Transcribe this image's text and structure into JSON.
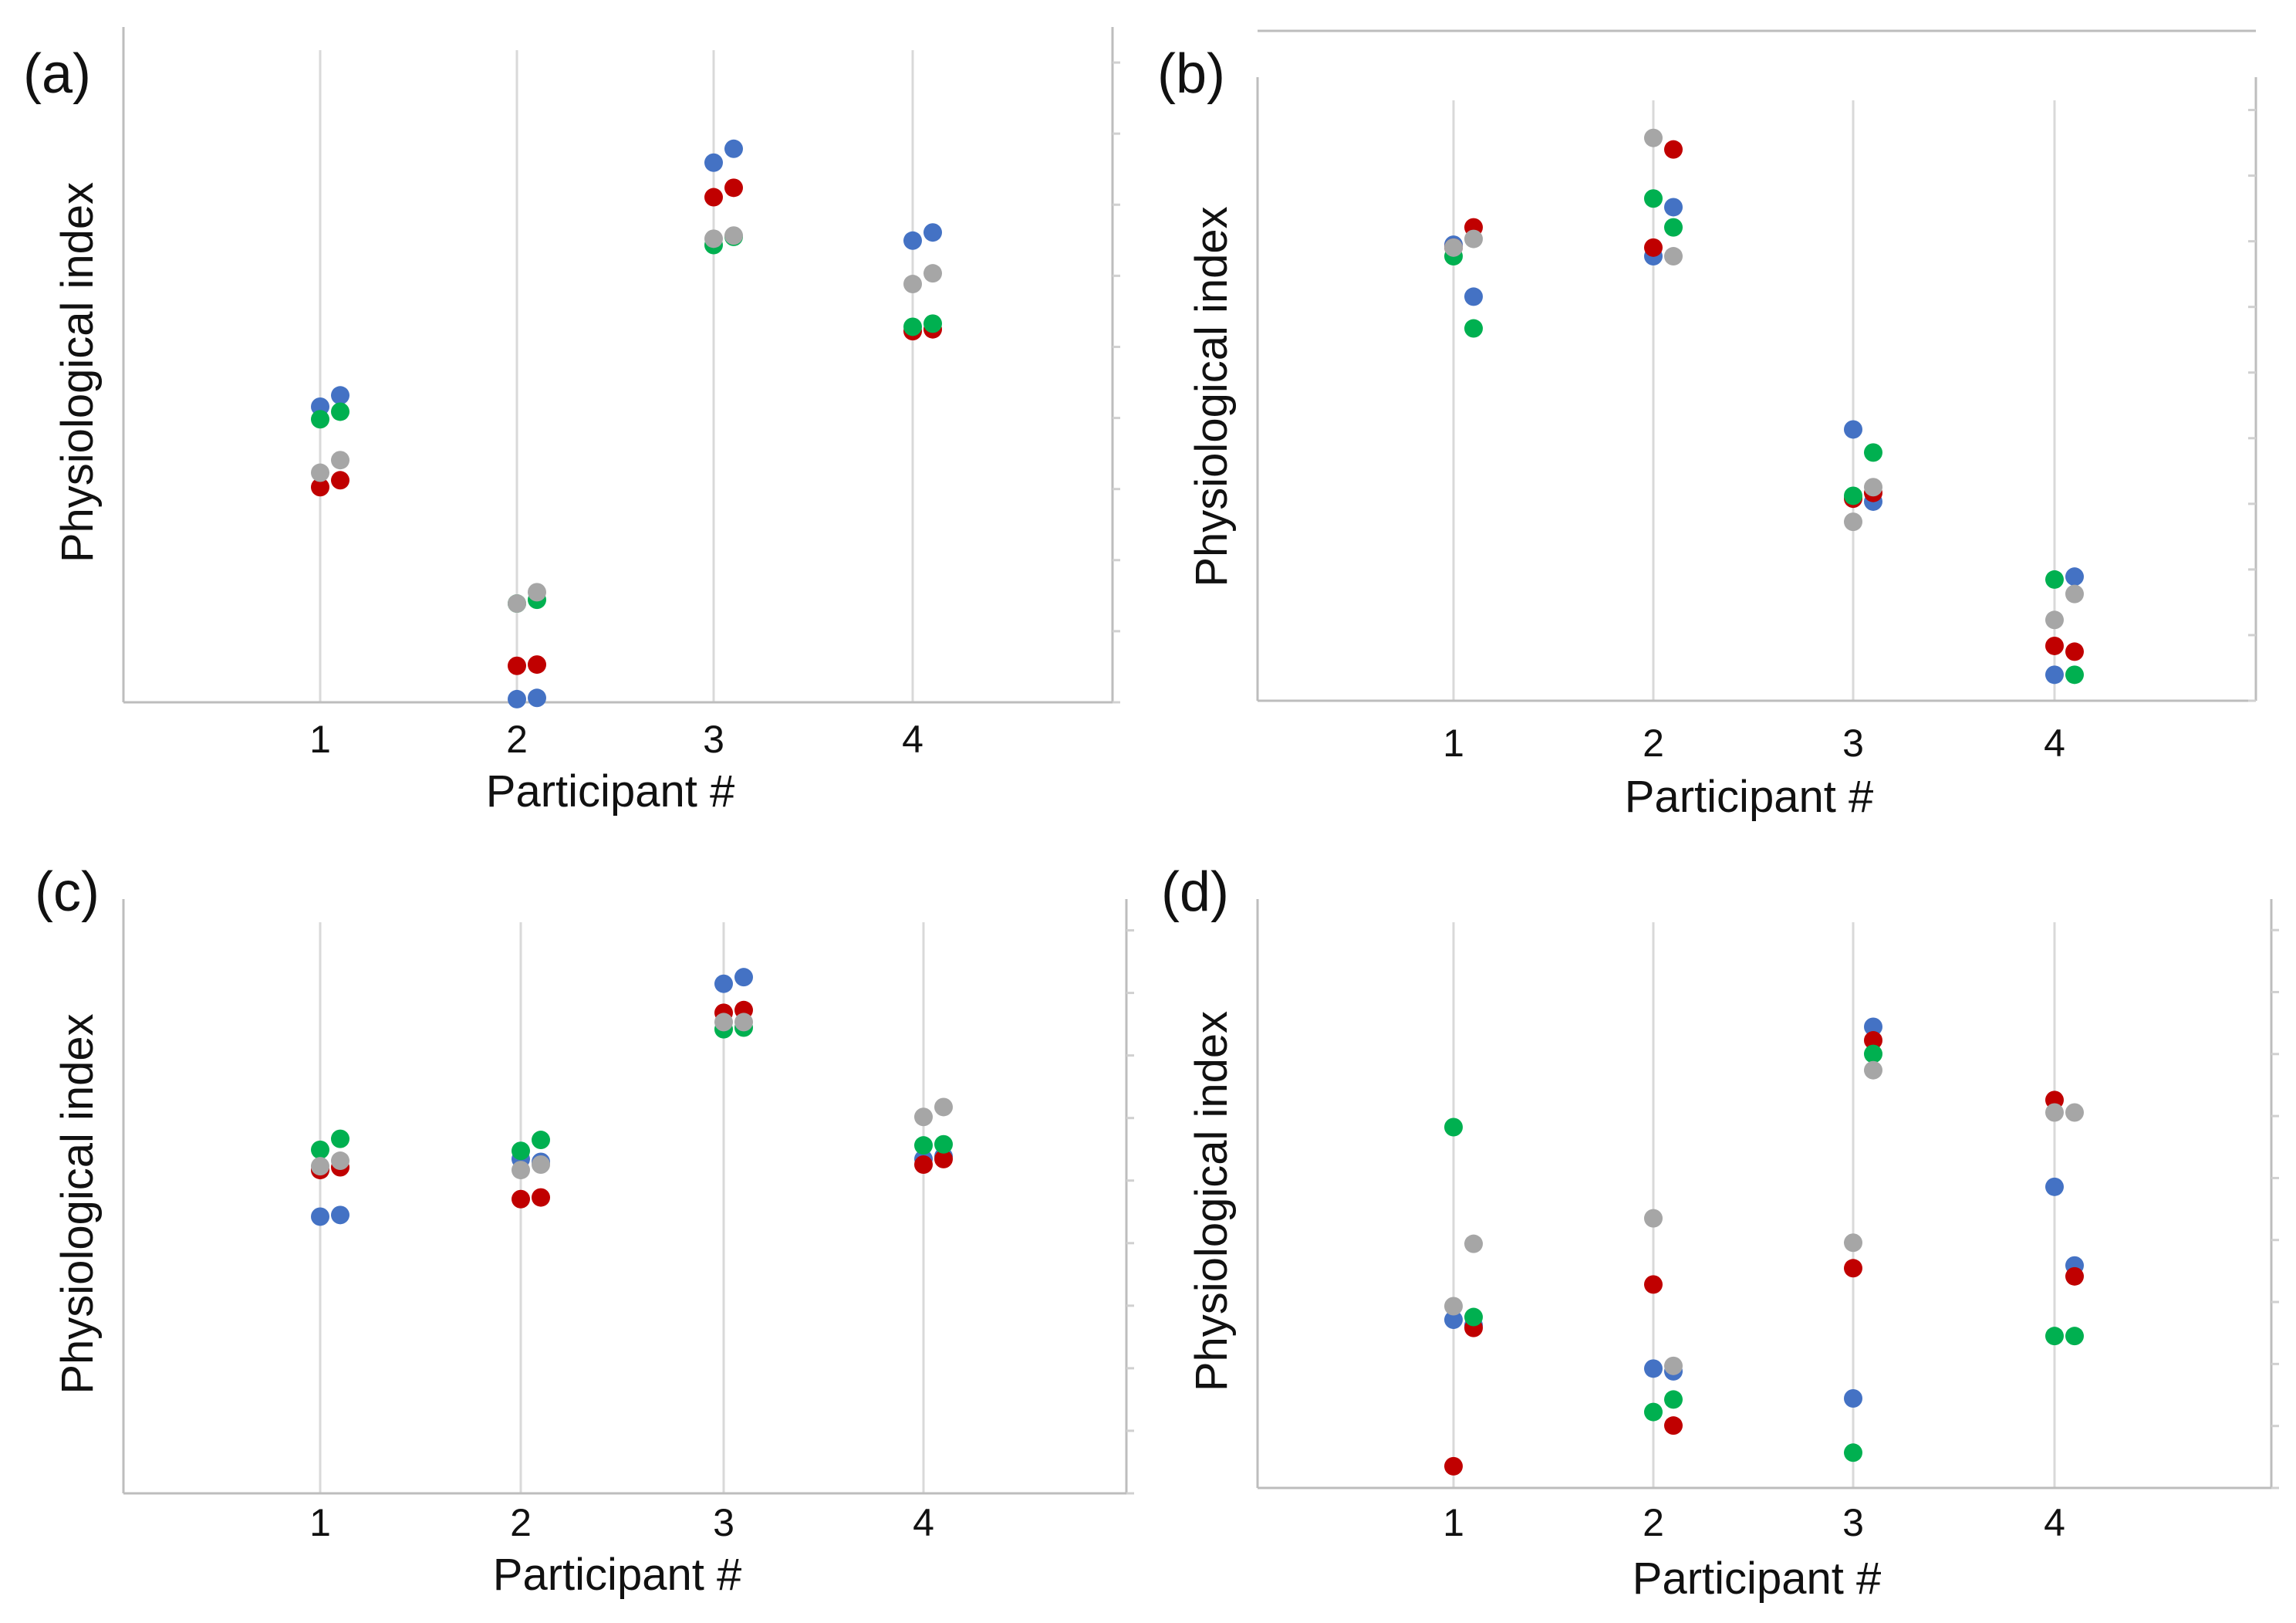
{
  "colors": {
    "blue": "#4472c4",
    "red": "#c00000",
    "green": "#00b050",
    "gray": "#a6a6a6"
  },
  "chart_data": [
    {
      "type": "scatter",
      "panel_label": "(a)",
      "xlabel": "Participant #",
      "ylabel": "Physiological index",
      "categories": [
        "1",
        "2",
        "3",
        "4"
      ],
      "xlim": [
        0,
        5
      ],
      "ylim": [
        0,
        1
      ],
      "grid": "vertical",
      "series": [
        {
          "color": "blue",
          "points": [
            [
              1,
              0.47
            ],
            [
              1.1,
              0.488
            ],
            [
              2,
              0.005
            ],
            [
              2.1,
              0.007
            ],
            [
              3,
              0.858
            ],
            [
              3.1,
              0.88
            ],
            [
              4,
              0.734
            ],
            [
              4.1,
              0.747
            ]
          ]
        },
        {
          "color": "red",
          "points": [
            [
              1,
              0.342
            ],
            [
              1.1,
              0.353
            ],
            [
              2,
              0.058
            ],
            [
              2.1,
              0.06
            ],
            [
              3,
              0.803
            ],
            [
              3.1,
              0.818
            ],
            [
              4,
              0.59
            ],
            [
              4.1,
              0.593
            ]
          ]
        },
        {
          "color": "green",
          "points": [
            [
              1,
              0.45
            ],
            [
              1.1,
              0.462
            ],
            [
              2,
              0.157
            ],
            [
              2.1,
              0.163
            ],
            [
              3,
              0.727
            ],
            [
              3.1,
              0.74
            ],
            [
              4,
              0.597
            ],
            [
              4.1,
              0.602
            ]
          ]
        },
        {
          "color": "gray",
          "points": [
            [
              1,
              0.365
            ],
            [
              1.1,
              0.385
            ],
            [
              2,
              0.157
            ],
            [
              2.1,
              0.175
            ],
            [
              3,
              0.737
            ],
            [
              3.1,
              0.742
            ],
            [
              4,
              0.665
            ],
            [
              4.1,
              0.682
            ]
          ]
        }
      ]
    },
    {
      "type": "scatter",
      "panel_label": "(b)",
      "xlabel": "Participant #",
      "ylabel": "Physiological index",
      "categories": [
        "1",
        "2",
        "3",
        "4"
      ],
      "xlim": [
        0,
        5
      ],
      "ylim": [
        0,
        1
      ],
      "grid": "vertical",
      "series": [
        {
          "color": "blue",
          "points": [
            [
              1,
              0.79
            ],
            [
              1.1,
              0.7
            ],
            [
              2,
              0.77
            ],
            [
              2.1,
              0.855
            ],
            [
              3,
              0.47
            ],
            [
              3.1,
              0.345
            ],
            [
              4,
              0.045
            ],
            [
              4.1,
              0.215
            ]
          ]
        },
        {
          "color": "red",
          "points": [
            [
              1,
              0.785
            ],
            [
              1.1,
              0.82
            ],
            [
              2,
              0.785
            ],
            [
              2.1,
              0.955
            ],
            [
              3,
              0.35
            ],
            [
              3.1,
              0.36
            ],
            [
              4,
              0.095
            ],
            [
              4.1,
              0.085
            ]
          ]
        },
        {
          "color": "green",
          "points": [
            [
              1,
              0.77
            ],
            [
              1.1,
              0.645
            ],
            [
              2,
              0.87
            ],
            [
              2.1,
              0.82
            ],
            [
              3,
              0.355
            ],
            [
              3.1,
              0.43
            ],
            [
              4,
              0.21
            ],
            [
              4.1,
              0.045
            ]
          ]
        },
        {
          "color": "gray",
          "points": [
            [
              1,
              0.785
            ],
            [
              1.1,
              0.8
            ],
            [
              2,
              0.975
            ],
            [
              2.1,
              0.77
            ],
            [
              3,
              0.31
            ],
            [
              3.1,
              0.37
            ],
            [
              4,
              0.14
            ],
            [
              4.1,
              0.185
            ]
          ]
        }
      ]
    },
    {
      "type": "scatter",
      "panel_label": "(c)",
      "xlabel": "Participant #",
      "ylabel": "Physiological index",
      "categories": [
        "1",
        "2",
        "3",
        "4"
      ],
      "xlim": [
        0,
        5
      ],
      "ylim": [
        0,
        1
      ],
      "grid": "vertical",
      "series": [
        {
          "color": "blue",
          "points": [
            [
              1,
              0.505
            ],
            [
              1.1,
              0.508
            ],
            [
              2,
              0.61
            ],
            [
              2.1,
              0.605
            ],
            [
              3,
              0.93
            ],
            [
              3.1,
              0.942
            ],
            [
              4,
              0.61
            ],
            [
              4.1,
              0.615
            ]
          ]
        },
        {
          "color": "red",
          "points": [
            [
              1,
              0.59
            ],
            [
              1.1,
              0.595
            ],
            [
              2,
              0.537
            ],
            [
              2.1,
              0.54
            ],
            [
              3,
              0.877
            ],
            [
              3.1,
              0.882
            ],
            [
              4,
              0.6
            ],
            [
              4.1,
              0.61
            ]
          ]
        },
        {
          "color": "green",
          "points": [
            [
              1,
              0.627
            ],
            [
              1.1,
              0.647
            ],
            [
              2,
              0.625
            ],
            [
              2.1,
              0.645
            ],
            [
              3,
              0.847
            ],
            [
              3.1,
              0.85
            ],
            [
              4,
              0.635
            ],
            [
              4.1,
              0.637
            ]
          ]
        },
        {
          "color": "gray",
          "points": [
            [
              1,
              0.597
            ],
            [
              1.1,
              0.607
            ],
            [
              2,
              0.59
            ],
            [
              2.1,
              0.6
            ],
            [
              3,
              0.86
            ],
            [
              3.1,
              0.86
            ],
            [
              4,
              0.687
            ],
            [
              4.1,
              0.705
            ]
          ]
        }
      ]
    },
    {
      "type": "scatter",
      "panel_label": "(d)",
      "xlabel": "Participant #",
      "ylabel": "Physiological index",
      "categories": [
        "1",
        "2",
        "3",
        "4"
      ],
      "xlim": [
        0,
        5
      ],
      "ylim": [
        0,
        1
      ],
      "grid": "vertical",
      "series": [
        {
          "color": "blue",
          "points": [
            [
              1,
              0.31
            ],
            [
              1.1,
              0.3
            ],
            [
              2,
              0.22
            ],
            [
              2.1,
              0.215
            ],
            [
              3,
              0.165
            ],
            [
              3.1,
              0.85
            ],
            [
              4,
              0.555
            ],
            [
              4.1,
              0.41
            ]
          ]
        },
        {
          "color": "red",
          "points": [
            [
              1,
              0.04
            ],
            [
              1.1,
              0.295
            ],
            [
              2,
              0.375
            ],
            [
              2.1,
              0.115
            ],
            [
              3,
              0.405
            ],
            [
              3.1,
              0.825
            ],
            [
              4,
              0.715
            ],
            [
              4.1,
              0.39
            ]
          ]
        },
        {
          "color": "green",
          "points": [
            [
              1,
              0.665
            ],
            [
              1.1,
              0.315
            ],
            [
              2,
              0.14
            ],
            [
              2.1,
              0.163
            ],
            [
              3,
              0.065
            ],
            [
              3.1,
              0.8
            ],
            [
              4,
              0.28
            ],
            [
              4.1,
              0.28
            ]
          ]
        },
        {
          "color": "gray",
          "points": [
            [
              1,
              0.335
            ],
            [
              1.1,
              0.45
            ],
            [
              2,
              0.497
            ],
            [
              2.1,
              0.225
            ],
            [
              3,
              0.452
            ],
            [
              3.1,
              0.77
            ],
            [
              4,
              0.692
            ],
            [
              4.1,
              0.692
            ]
          ]
        }
      ]
    }
  ]
}
